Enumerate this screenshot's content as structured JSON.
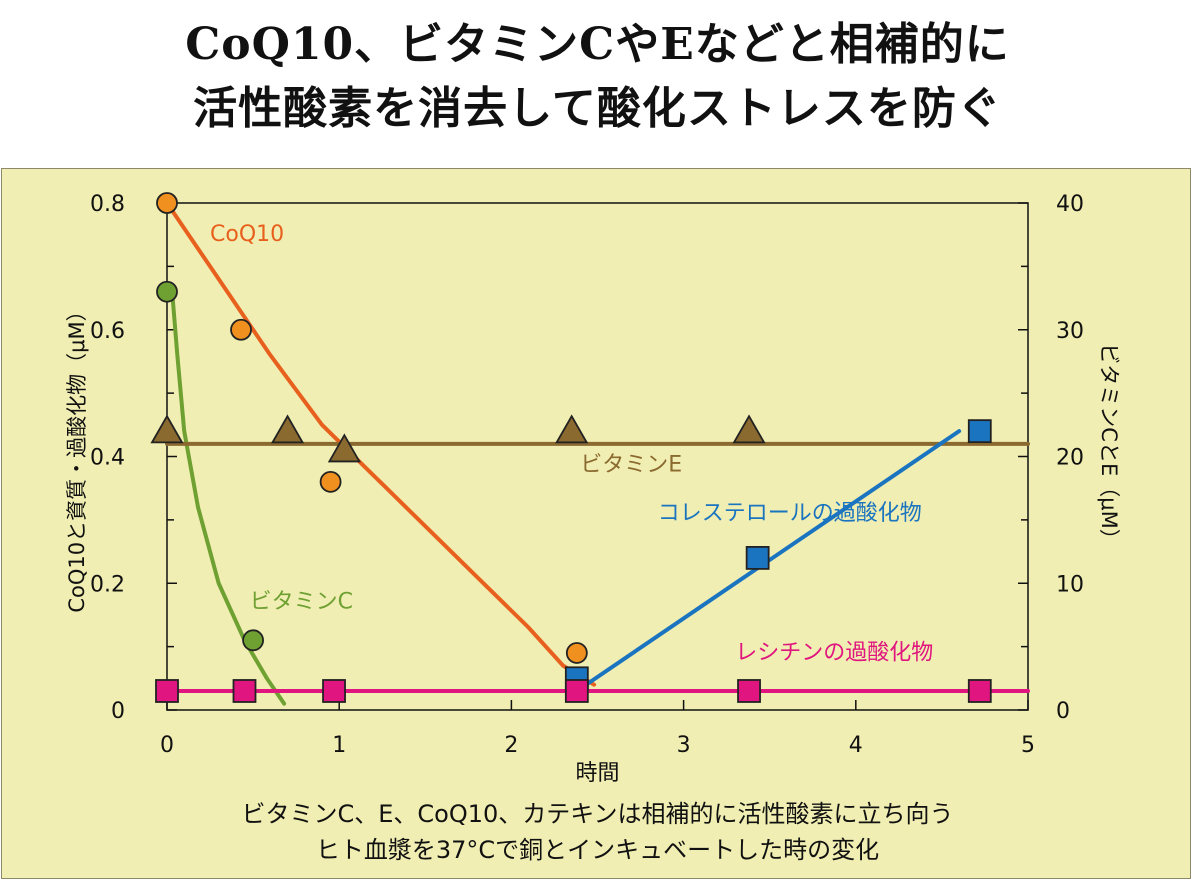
{
  "title": {
    "line1": "CoQ10、ビタミンCやEなどと相補的に",
    "line2": "活性酸素を消去して酸化ストレスを防ぐ"
  },
  "caption": {
    "line1": "ビタミンC、E、CoQ10、カテキンは相補的に活性酸素に立ち向う",
    "line2": "ヒト血漿を37°Cで銅とインキュベートした時の変化"
  },
  "chart_data": {
    "type": "scatter",
    "xlabel": "時間",
    "ylabel_left": "CoQ10と資質・過酸化物（μM）",
    "ylabel_right": "ビタミンCとE（μM）",
    "xlim": [
      0,
      5
    ],
    "ylim_left": [
      0,
      0.8
    ],
    "ylim_right": [
      0,
      40
    ],
    "x_ticks": [
      "0",
      "1",
      "2",
      "3",
      "4",
      "5"
    ],
    "y_ticks_left": [
      "0",
      "0.2",
      "0.4",
      "0.6",
      "0.8"
    ],
    "y_ticks_right": [
      "0",
      "10",
      "20",
      "30",
      "40"
    ],
    "grid": false,
    "series": [
      {
        "name": "CoQ10",
        "axis": "left",
        "marker": "circle",
        "color": "#f0901e",
        "line_color": "#e8601e",
        "points": [
          [
            0.0,
            0.8
          ],
          [
            0.43,
            0.6
          ],
          [
            0.95,
            0.36
          ],
          [
            2.38,
            0.09
          ]
        ],
        "curve": [
          [
            0.0,
            0.8
          ],
          [
            0.3,
            0.68
          ],
          [
            0.6,
            0.56
          ],
          [
            0.9,
            0.45
          ],
          [
            1.2,
            0.37
          ],
          [
            1.5,
            0.29
          ],
          [
            1.8,
            0.21
          ],
          [
            2.1,
            0.13
          ],
          [
            2.3,
            0.07
          ],
          [
            2.48,
            0.04
          ]
        ]
      },
      {
        "name": "ビタミンC",
        "axis": "right",
        "marker": "circle",
        "color": "#6fa032",
        "line_color": "#6fa032",
        "points": [
          [
            0.0,
            33.0
          ],
          [
            0.5,
            5.5
          ]
        ],
        "curve": [
          [
            0.03,
            33.0
          ],
          [
            0.06,
            28.0
          ],
          [
            0.1,
            22.0
          ],
          [
            0.18,
            16.0
          ],
          [
            0.3,
            10.0
          ],
          [
            0.45,
            5.5
          ],
          [
            0.58,
            2.5
          ],
          [
            0.68,
            0.5
          ]
        ]
      },
      {
        "name": "ビタミンE",
        "axis": "right",
        "marker": "triangle",
        "color": "#8b6a30",
        "line_color": "#8b6a30",
        "points": [
          [
            0.0,
            22.0
          ],
          [
            0.7,
            22.0
          ],
          [
            1.03,
            20.5
          ],
          [
            2.35,
            22.0
          ],
          [
            3.38,
            22.0
          ]
        ],
        "curve": [
          [
            0.0,
            21.0
          ],
          [
            5.0,
            21.0
          ]
        ]
      },
      {
        "name": "コレステロールの過酸化物",
        "axis": "left",
        "marker": "square",
        "color": "#1a74c0",
        "line_color": "#1a74c0",
        "points": [
          [
            2.38,
            0.05
          ],
          [
            3.43,
            0.24
          ],
          [
            4.72,
            0.44
          ]
        ],
        "curve": [
          [
            2.38,
            0.03
          ],
          [
            4.6,
            0.44
          ]
        ]
      },
      {
        "name": "レシチンの過酸化物",
        "axis": "left",
        "marker": "square",
        "color": "#e0157f",
        "line_color": "#e0157f",
        "points": [
          [
            0.0,
            0.03
          ],
          [
            0.45,
            0.03
          ],
          [
            0.97,
            0.03
          ],
          [
            2.38,
            0.03
          ],
          [
            3.38,
            0.03
          ],
          [
            4.72,
            0.03
          ]
        ],
        "curve": [
          [
            -0.05,
            0.03
          ],
          [
            5.0,
            0.03
          ]
        ]
      }
    ],
    "annotations": [
      "CoQ10",
      "ビタミンC",
      "ビタミンE",
      "コレステロールの過酸化物",
      "レシチンの過酸化物"
    ]
  }
}
